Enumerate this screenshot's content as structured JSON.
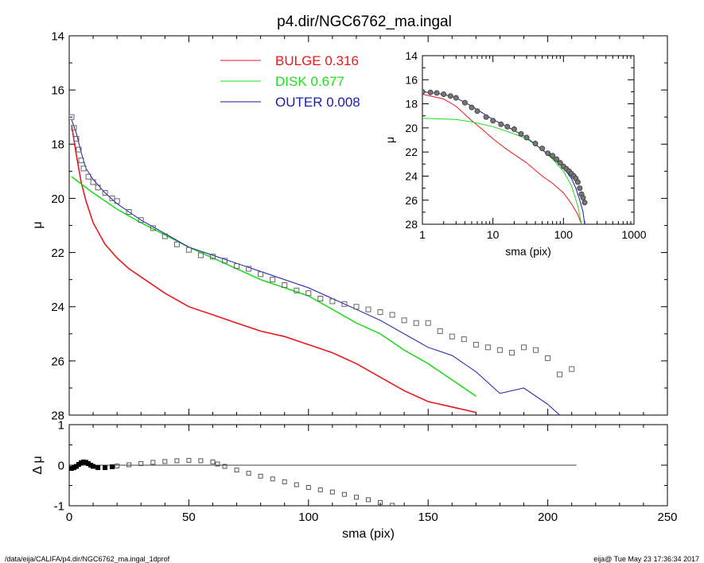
{
  "title": "p4.dir/NGC6762_ma.ingal",
  "footer": {
    "left": "/data/eija/CALIFA/p4.dir/NGC6762_ma.ingal_1dprof",
    "right": "eija@  Tue May 23 17:36:34 2017"
  },
  "legend": [
    {
      "name": "BULGE",
      "value": "0.316",
      "color": "#e8191b"
    },
    {
      "name": "DISK",
      "value": "0.677",
      "color": "#22dd22"
    },
    {
      "name": "OUTER",
      "value": "0.008",
      "color": "#1a1ab4"
    }
  ],
  "chart_data": [
    {
      "type": "line",
      "panel": "main",
      "xlabel": "",
      "ylabel": "μ",
      "xlim": [
        0,
        250
      ],
      "ylim": [
        28,
        14
      ],
      "xticks": [
        0,
        50,
        100,
        150,
        200,
        250
      ],
      "yticks": [
        14,
        16,
        18,
        20,
        22,
        24,
        26,
        28
      ],
      "series": [
        {
          "name": "BULGE",
          "color": "#e8191b",
          "x": [
            1,
            3,
            5,
            7,
            10,
            15,
            20,
            25,
            30,
            40,
            50,
            60,
            70,
            80,
            90,
            100,
            110,
            120,
            130,
            140,
            150,
            160,
            170
          ],
          "y": [
            17.3,
            18.4,
            19.4,
            20.1,
            20.9,
            21.7,
            22.2,
            22.6,
            22.9,
            23.5,
            24.0,
            24.3,
            24.6,
            24.9,
            25.1,
            25.4,
            25.7,
            26.1,
            26.6,
            27.1,
            27.5,
            27.7,
            27.9
          ]
        },
        {
          "name": "DISK",
          "color": "#22dd22",
          "x": [
            1,
            10,
            20,
            30,
            40,
            50,
            60,
            70,
            80,
            90,
            100,
            110,
            120,
            130,
            140,
            150,
            160,
            170
          ],
          "y": [
            19.2,
            19.8,
            20.4,
            20.9,
            21.35,
            21.8,
            22.2,
            22.6,
            23.0,
            23.3,
            23.6,
            24.1,
            24.6,
            25.0,
            25.6,
            26.1,
            26.7,
            27.3
          ]
        },
        {
          "name": "OUTER",
          "color": "#1a1ab4",
          "x": [
            1,
            3,
            5,
            7,
            10,
            15,
            20,
            25,
            30,
            40,
            50,
            60,
            70,
            80,
            90,
            100,
            110,
            120,
            130,
            140,
            150,
            160,
            170,
            180,
            190,
            200,
            205
          ],
          "y": [
            17.1,
            17.6,
            18.3,
            18.9,
            19.3,
            19.8,
            20.2,
            20.5,
            20.8,
            21.3,
            21.8,
            22.1,
            22.4,
            22.7,
            23.0,
            23.3,
            23.7,
            24.1,
            24.5,
            25.0,
            25.5,
            25.8,
            26.4,
            27.2,
            27.0,
            27.6,
            28.0
          ]
        },
        {
          "name": "data",
          "color": "#666666",
          "x": [
            1,
            2,
            3,
            4,
            5,
            6,
            8,
            10,
            12,
            15,
            18,
            20,
            25,
            30,
            35,
            40,
            45,
            50,
            55,
            60,
            65,
            70,
            75,
            80,
            85,
            90,
            95,
            100,
            105,
            110,
            115,
            120,
            125,
            130,
            135,
            140,
            145,
            150,
            155,
            160,
            165,
            170,
            175,
            180,
            185,
            190,
            195,
            200,
            205,
            210
          ],
          "y": [
            17.0,
            17.4,
            17.8,
            18.2,
            18.6,
            18.9,
            19.2,
            19.4,
            19.6,
            19.8,
            20.0,
            20.1,
            20.5,
            20.8,
            21.1,
            21.4,
            21.7,
            21.9,
            22.1,
            22.15,
            22.3,
            22.5,
            22.6,
            22.8,
            23.0,
            23.2,
            23.4,
            23.5,
            23.7,
            23.8,
            23.9,
            24.0,
            24.1,
            24.2,
            24.3,
            24.5,
            24.6,
            24.6,
            24.9,
            25.1,
            25.2,
            25.4,
            25.5,
            25.6,
            25.7,
            25.5,
            25.6,
            25.9,
            26.5,
            26.3
          ]
        }
      ]
    },
    {
      "type": "scatter",
      "panel": "residual",
      "xlabel": "sma (pix)",
      "ylabel": "Δ μ",
      "xlim": [
        0,
        250
      ],
      "ylim": [
        -1,
        1
      ],
      "xticks": [
        0,
        50,
        100,
        150,
        200,
        250
      ],
      "yticks": [
        -1,
        0,
        1
      ],
      "zero_line_x": [
        0,
        212
      ],
      "series": [
        {
          "name": "residual",
          "x": [
            1,
            2,
            3,
            4,
            5,
            6,
            7,
            8,
            9,
            10,
            12,
            15,
            18,
            20,
            25,
            30,
            35,
            40,
            45,
            50,
            55,
            60,
            62,
            65,
            70,
            75,
            80,
            85,
            90,
            95,
            100,
            105,
            110,
            115,
            120,
            125,
            130,
            135
          ],
          "y": [
            -0.08,
            -0.06,
            -0.03,
            0.02,
            0.06,
            0.08,
            0.07,
            0.04,
            0.0,
            -0.03,
            -0.06,
            -0.06,
            -0.04,
            -0.02,
            0.01,
            0.04,
            0.07,
            0.09,
            0.11,
            0.12,
            0.11,
            0.08,
            0.03,
            -0.03,
            -0.12,
            -0.2,
            -0.27,
            -0.34,
            -0.41,
            -0.48,
            -0.55,
            -0.61,
            -0.66,
            -0.72,
            -0.79,
            -0.85,
            -0.92,
            -0.99
          ]
        }
      ]
    },
    {
      "type": "line",
      "panel": "inset",
      "xlabel": "sma (pix)",
      "ylabel": "μ",
      "xscale": "log",
      "xlim": [
        1,
        1000
      ],
      "ylim": [
        28,
        14
      ],
      "xticks": [
        1,
        10,
        100,
        1000
      ],
      "yticks": [
        14,
        16,
        18,
        20,
        22,
        24,
        26,
        28
      ],
      "series": [
        {
          "name": "BULGE",
          "color": "#e8191b",
          "x": [
            1,
            2,
            3,
            5,
            7,
            10,
            15,
            20,
            30,
            50,
            70,
            100,
            130,
            160,
            180
          ],
          "y": [
            17.2,
            17.6,
            18.2,
            19.4,
            20.1,
            20.9,
            21.7,
            22.2,
            22.9,
            24.0,
            24.6,
            25.4,
            26.3,
            27.2,
            28.0
          ]
        },
        {
          "name": "DISK",
          "color": "#22dd22",
          "x": [
            1,
            3,
            5,
            10,
            20,
            30,
            50,
            70,
            100,
            130,
            160,
            180
          ],
          "y": [
            19.2,
            19.3,
            19.5,
            19.9,
            20.5,
            20.9,
            21.8,
            22.6,
            23.6,
            24.8,
            26.5,
            28.0
          ]
        },
        {
          "name": "OUTER",
          "color": "#1a1ab4",
          "x": [
            1,
            2,
            3,
            5,
            10,
            20,
            30,
            50,
            70,
            100,
            130,
            150,
            170,
            190,
            200
          ],
          "y": [
            17.0,
            17.2,
            17.5,
            18.2,
            19.3,
            20.2,
            20.8,
            21.8,
            22.5,
            23.3,
            24.2,
            25.0,
            26.0,
            27.0,
            28.0
          ]
        },
        {
          "name": "data",
          "color": "#555555",
          "x": [
            1,
            1.3,
            1.6,
            2,
            2.5,
            3,
            4,
            5,
            6,
            8,
            10,
            13,
            16,
            20,
            25,
            30,
            40,
            50,
            60,
            70,
            80,
            90,
            100,
            110,
            120,
            130,
            140,
            150,
            160,
            170,
            180,
            190,
            200
          ],
          "y": [
            17.0,
            17.05,
            17.1,
            17.2,
            17.35,
            17.5,
            17.9,
            18.3,
            18.6,
            19.1,
            19.4,
            19.7,
            19.9,
            20.1,
            20.5,
            20.8,
            21.3,
            21.7,
            22.1,
            22.3,
            22.6,
            22.9,
            23.2,
            23.4,
            23.6,
            23.8,
            24.0,
            24.2,
            24.5,
            25.0,
            25.5,
            25.8,
            26.2
          ]
        }
      ]
    }
  ]
}
